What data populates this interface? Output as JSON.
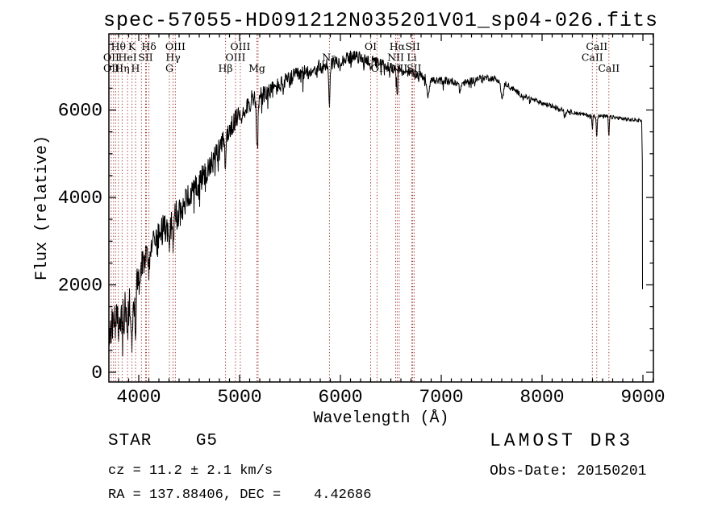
{
  "annotations": {
    "classification": "STAR    G5",
    "cz": "cz = 11.2 ± 2.1 km/s",
    "ra_dec": "RA = 137.88406, DEC =    4.42686",
    "survey": "LAMOST DR3",
    "obs_date": "Obs-Date: 20150201"
  },
  "chart_data": {
    "type": "line",
    "title": "spec-57055-HD091212N035201V01_sp04-026.fits",
    "xlabel": "Wavelength (Å)",
    "ylabel": "Flux (relative)",
    "x_range": [
      3704,
      9104
    ],
    "y_range": [
      -221,
      7742
    ],
    "x_ticks": [
      4000,
      5000,
      6000,
      7000,
      8000,
      9000
    ],
    "y_ticks": [
      0,
      2000,
      4000,
      6000
    ],
    "x_minor_step": 100,
    "y_minor_step": 500,
    "grid": false,
    "legend": "none",
    "marker_color": "#a03832",
    "spectrum_color": "#000000",
    "spectral_lines": [
      {
        "wavelength": 3727,
        "label": "OII",
        "row": 2
      },
      {
        "wavelength": 3729,
        "label": "OII",
        "row": 3,
        "no_line": true
      },
      {
        "wavelength": 3750,
        "label": "",
        "row": 0
      },
      {
        "wavelength": 3771,
        "label": "",
        "row": 0
      },
      {
        "wavelength": 3798,
        "label": "Hθ",
        "row": 1
      },
      {
        "wavelength": 3835,
        "label": "Hη",
        "row": 3
      },
      {
        "wavelength": 3889,
        "label": "HeI",
        "row": 2
      },
      {
        "wavelength": 3933,
        "label": "K",
        "row": 1
      },
      {
        "wavelength": 3968,
        "label": "H",
        "row": 3
      },
      {
        "wavelength": 4026,
        "label": "",
        "row": 0
      },
      {
        "wavelength": 4068,
        "label": "SII",
        "row": 2
      },
      {
        "wavelength": 4076,
        "label": "",
        "row": 0
      },
      {
        "wavelength": 4101,
        "label": "Hδ",
        "row": 1
      },
      {
        "wavelength": 4304,
        "label": "G",
        "row": 3
      },
      {
        "wavelength": 4340,
        "label": "Hγ",
        "row": 2
      },
      {
        "wavelength": 4363,
        "label": "OIII",
        "row": 1
      },
      {
        "wavelength": 4861,
        "label": "Hβ",
        "row": 3
      },
      {
        "wavelength": 4959,
        "label": "OIII",
        "row": 2
      },
      {
        "wavelength": 5007,
        "label": "OIII",
        "row": 1
      },
      {
        "wavelength": 5172,
        "label": "Mg",
        "row": 3
      },
      {
        "wavelength": 5183,
        "label": "",
        "row": 0
      },
      {
        "wavelength": 5891,
        "label": "Na",
        "row": 2
      },
      {
        "wavelength": 6300,
        "label": "OI",
        "row": 1
      },
      {
        "wavelength": 6363,
        "label": "OI",
        "row": 3
      },
      {
        "wavelength": 6548,
        "label": "NII",
        "row": 2
      },
      {
        "wavelength": 6563,
        "label": "Hα",
        "row": 1
      },
      {
        "wavelength": 6583,
        "label": "NII",
        "row": 3
      },
      {
        "wavelength": 6708,
        "label": "Li",
        "row": 2
      },
      {
        "wavelength": 6717,
        "label": "SII",
        "row": 1
      },
      {
        "wavelength": 6731,
        "label": "SII",
        "row": 3
      },
      {
        "wavelength": 8498,
        "label": "CaII",
        "row": 2
      },
      {
        "wavelength": 8542,
        "label": "CaII",
        "row": 1
      },
      {
        "wavelength": 8662,
        "label": "CaII",
        "row": 3
      }
    ],
    "series": [
      {
        "name": "spectrum",
        "envelope": [
          [
            3704,
            900
          ],
          [
            3730,
            1100
          ],
          [
            3770,
            1220
          ],
          [
            3810,
            1320
          ],
          [
            3850,
            1380
          ],
          [
            3890,
            1450
          ],
          [
            3930,
            1550
          ],
          [
            3970,
            1950
          ],
          [
            4010,
            2400
          ],
          [
            4060,
            2700
          ],
          [
            4110,
            2950
          ],
          [
            4160,
            3050
          ],
          [
            4220,
            3200
          ],
          [
            4290,
            3400
          ],
          [
            4350,
            3550
          ],
          [
            4410,
            3650
          ],
          [
            4470,
            3900
          ],
          [
            4540,
            4200
          ],
          [
            4610,
            4400
          ],
          [
            4680,
            4620
          ],
          [
            4750,
            4900
          ],
          [
            4820,
            5200
          ],
          [
            4880,
            5450
          ],
          [
            4940,
            5700
          ],
          [
            5000,
            5900
          ],
          [
            5070,
            6100
          ],
          [
            5140,
            6250
          ],
          [
            5210,
            6300
          ],
          [
            5280,
            6400
          ],
          [
            5350,
            6500
          ],
          [
            5420,
            6600
          ],
          [
            5490,
            6700
          ],
          [
            5560,
            6780
          ],
          [
            5630,
            6840
          ],
          [
            5700,
            6900
          ],
          [
            5770,
            6950
          ],
          [
            5840,
            7000
          ],
          [
            5910,
            7060
          ],
          [
            5980,
            7120
          ],
          [
            6050,
            7180
          ],
          [
            6120,
            7220
          ],
          [
            6190,
            7200
          ],
          [
            6260,
            7150
          ],
          [
            6330,
            7100
          ],
          [
            6400,
            7050
          ],
          [
            6470,
            7000
          ],
          [
            6540,
            6950
          ],
          [
            6610,
            6900
          ],
          [
            6680,
            6860
          ],
          [
            6750,
            6820
          ],
          [
            6820,
            6770
          ],
          [
            6890,
            6700
          ],
          [
            6960,
            6660
          ],
          [
            7030,
            6680
          ],
          [
            7100,
            6660
          ],
          [
            7170,
            6620
          ],
          [
            7240,
            6620
          ],
          [
            7310,
            6680
          ],
          [
            7380,
            6730
          ],
          [
            7450,
            6740
          ],
          [
            7520,
            6720
          ],
          [
            7590,
            6680
          ],
          [
            7660,
            6570
          ],
          [
            7730,
            6450
          ],
          [
            7800,
            6330
          ],
          [
            7870,
            6270
          ],
          [
            7940,
            6210
          ],
          [
            8010,
            6150
          ],
          [
            8080,
            6100
          ],
          [
            8150,
            6050
          ],
          [
            8220,
            6000
          ],
          [
            8290,
            5960
          ],
          [
            8360,
            5920
          ],
          [
            8430,
            5890
          ],
          [
            8500,
            5870
          ],
          [
            8570,
            5860
          ],
          [
            8640,
            5850
          ],
          [
            8710,
            5830
          ],
          [
            8780,
            5810
          ],
          [
            8850,
            5780
          ],
          [
            8920,
            5770
          ],
          [
            8990,
            5770
          ]
        ],
        "absorption_dips": [
          [
            3727,
            250,
            4
          ],
          [
            3798,
            350,
            5
          ],
          [
            3835,
            380,
            5
          ],
          [
            3889,
            450,
            5
          ],
          [
            3933,
            1200,
            6
          ],
          [
            3968,
            1250,
            6
          ],
          [
            4026,
            300,
            5
          ],
          [
            4101,
            550,
            6
          ],
          [
            4304,
            550,
            9
          ],
          [
            4340,
            600,
            6
          ],
          [
            4861,
            600,
            6
          ],
          [
            5175,
            1100,
            9
          ],
          [
            5891,
            880,
            6
          ],
          [
            6300,
            160,
            5
          ],
          [
            6563,
            580,
            6
          ],
          [
            6868,
            360,
            12
          ],
          [
            7186,
            180,
            10
          ],
          [
            7605,
            430,
            11
          ],
          [
            8227,
            120,
            9
          ],
          [
            8498,
            300,
            4
          ],
          [
            8542,
            500,
            4
          ],
          [
            8662,
            480,
            4
          ]
        ],
        "noise_amplitude": [
          [
            3704,
            420
          ],
          [
            3800,
            440
          ],
          [
            3900,
            450
          ],
          [
            4000,
            400
          ],
          [
            4100,
            380
          ],
          [
            4200,
            360
          ],
          [
            4300,
            360
          ],
          [
            4400,
            340
          ],
          [
            4500,
            310
          ],
          [
            4600,
            300
          ],
          [
            4700,
            285
          ],
          [
            4800,
            265
          ],
          [
            4900,
            245
          ],
          [
            5000,
            235
          ],
          [
            5100,
            230
          ],
          [
            5180,
            280
          ],
          [
            5260,
            215
          ],
          [
            5350,
            205
          ],
          [
            5450,
            195
          ],
          [
            5550,
            188
          ],
          [
            5650,
            182
          ],
          [
            5750,
            176
          ],
          [
            5850,
            170
          ],
          [
            5950,
            162
          ],
          [
            6050,
            152
          ],
          [
            6150,
            146
          ],
          [
            6250,
            140
          ],
          [
            6350,
            134
          ],
          [
            6450,
            128
          ],
          [
            6550,
            122
          ],
          [
            6650,
            115
          ],
          [
            6750,
            110
          ],
          [
            6850,
            105
          ],
          [
            6950,
            96
          ],
          [
            7050,
            90
          ],
          [
            7150,
            86
          ],
          [
            7250,
            80
          ],
          [
            7350,
            76
          ],
          [
            7450,
            71
          ],
          [
            7550,
            76
          ],
          [
            7650,
            66
          ],
          [
            7750,
            62
          ],
          [
            7850,
            58
          ],
          [
            7950,
            55
          ],
          [
            8050,
            52
          ],
          [
            8150,
            50
          ],
          [
            8250,
            48
          ],
          [
            8350,
            46
          ],
          [
            8450,
            45
          ],
          [
            8550,
            48
          ],
          [
            8650,
            47
          ],
          [
            8750,
            45
          ],
          [
            8850,
            44
          ],
          [
            8950,
            42
          ],
          [
            8990,
            40
          ]
        ],
        "end_drop": {
          "wavelength": 8996,
          "flux": 1900
        }
      }
    ]
  }
}
